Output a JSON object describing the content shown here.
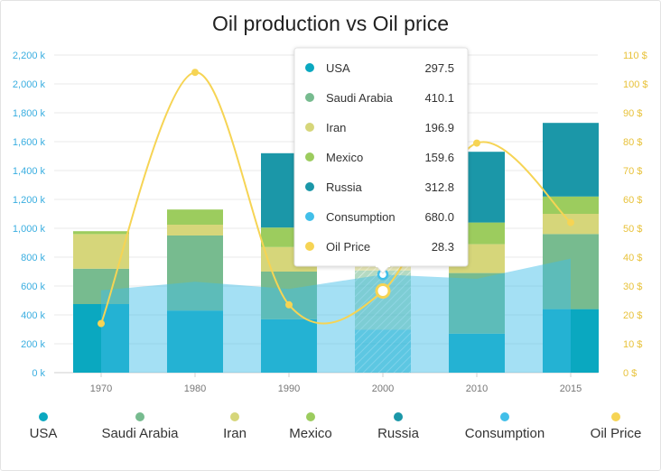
{
  "chart_data": {
    "type": "bar",
    "title": "Oil production vs Oil price",
    "categories": [
      "1970",
      "1980",
      "1990",
      "2000",
      "2010",
      "2015"
    ],
    "y_left": {
      "min": 0,
      "max": 2200,
      "step": 200,
      "tick_labels": [
        "0 k",
        "200 k",
        "400 k",
        "600 k",
        "800 k",
        "1,000 k",
        "1,200 k",
        "1,400 k",
        "1,600 k",
        "1,800 k",
        "2,000 k",
        "2,200 k"
      ]
    },
    "y_right": {
      "min": 0,
      "max": 110,
      "step": 10,
      "tick_labels": [
        "0 $",
        "10 $",
        "20 $",
        "30 $",
        "40 $",
        "50 $",
        "60 $",
        "70 $",
        "80 $",
        "90 $",
        "100 $",
        "110 $"
      ]
    },
    "grid": true,
    "legend_position": "bottom",
    "series": [
      {
        "name": "USA",
        "type": "stacked-bar",
        "color": "#0aa8c0",
        "values": [
          475,
          430,
          370,
          297.5,
          270,
          440
        ]
      },
      {
        "name": "Saudi Arabia",
        "type": "stacked-bar",
        "color": "#77bb8f",
        "values": [
          245,
          520,
          330,
          410.1,
          420,
          520
        ]
      },
      {
        "name": "Iran",
        "type": "stacked-bar",
        "color": "#d6d67a",
        "values": [
          240,
          75,
          170,
          196.9,
          200,
          140
        ]
      },
      {
        "name": "Mexico",
        "type": "stacked-bar",
        "color": "#9ccc5e",
        "values": [
          20,
          105,
          135,
          159.6,
          150,
          120
        ]
      },
      {
        "name": "Russia",
        "type": "stacked-bar",
        "color": "#1b97a8",
        "values": [
          0,
          0,
          515,
          312.8,
          490,
          510
        ]
      },
      {
        "name": "Consumption",
        "type": "area",
        "color": "#41bfe9",
        "values": [
          570,
          630,
          580,
          680,
          650,
          790
        ]
      },
      {
        "name": "Oil Price",
        "type": "spline",
        "axis": "right",
        "color": "#f6d454",
        "values": [
          17,
          104,
          23.5,
          28.3,
          79.5,
          52
        ]
      }
    ],
    "tooltip": {
      "category": "2000",
      "rows": [
        {
          "name": "USA",
          "value": "297.5",
          "color": "#0aa8c0"
        },
        {
          "name": "Saudi Arabia",
          "value": "410.1",
          "color": "#77bb8f"
        },
        {
          "name": "Iran",
          "value": "196.9",
          "color": "#d6d67a"
        },
        {
          "name": "Mexico",
          "value": "159.6",
          "color": "#9ccc5e"
        },
        {
          "name": "Russia",
          "value": "312.8",
          "color": "#1b97a8"
        },
        {
          "name": "Consumption",
          "value": "680.0",
          "color": "#41bfe9"
        },
        {
          "name": "Oil Price",
          "value": "28.3",
          "color": "#f6d454"
        }
      ]
    }
  }
}
